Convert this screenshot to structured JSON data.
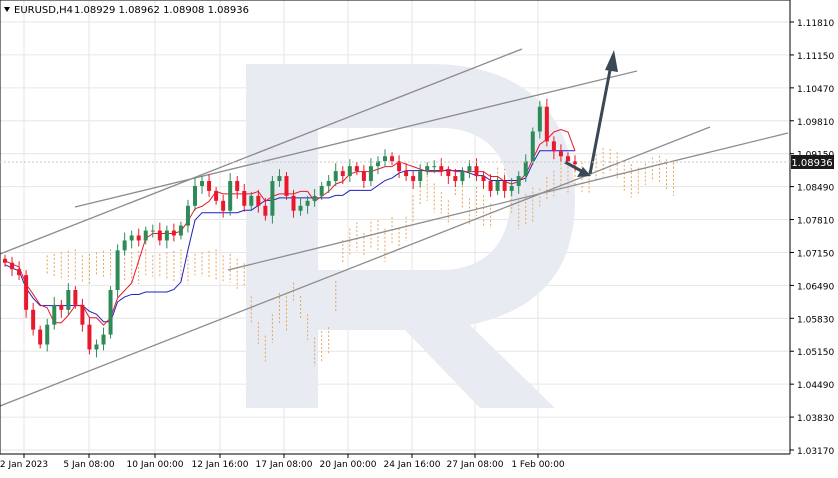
{
  "header": {
    "symbol": "EURUSD,H4",
    "ohlc": "1.08929 1.08962 1.08908 1.08936"
  },
  "price_badge": "1.08936",
  "colors": {
    "bull_candle": "#2e8b57",
    "bear_candle": "#e8192c",
    "kijun_line": "#1f1fbf",
    "tenkan_line": "#e8192c",
    "cloud": "#e8a35a",
    "trend_lines": "#8c8c8c",
    "forecast_arrow": "#3a4856",
    "grid": "#e6e6e6",
    "watermark": "#e8ecf2",
    "price_badge_bg": "#1a1a1a"
  },
  "chart_data": {
    "type": "candlestick",
    "title": "EURUSD,H4",
    "y_ticks": [
      "1.11810",
      "1.11150",
      "1.10470",
      "1.09810",
      "1.09150",
      "1.08490",
      "1.07810",
      "1.07150",
      "1.06490",
      "1.05830",
      "1.05150",
      "1.04490",
      "1.03830",
      "1.03170"
    ],
    "x_ticks": [
      "2 Jan 2023",
      "5 Jan 08:00",
      "10 Jan 00:00",
      "12 Jan 16:00",
      "17 Jan 08:00",
      "20 Jan 00:00",
      "24 Jan 16:00",
      "27 Jan 08:00",
      "1 Feb 00:00"
    ],
    "ylim": [
      1.0317,
      1.1181
    ],
    "grid": true,
    "last_price": 1.08936,
    "candles_close_approx": [
      1.0695,
      1.0682,
      1.067,
      1.06,
      1.056,
      1.053,
      1.057,
      1.061,
      1.06,
      1.064,
      1.061,
      1.057,
      1.052,
      1.053,
      1.055,
      1.064,
      1.072,
      1.074,
      1.075,
      1.074,
      1.076,
      1.076,
      1.074,
      1.076,
      1.075,
      1.077,
      1.081,
      1.085,
      1.086,
      1.084,
      1.082,
      1.08,
      1.086,
      1.084,
      1.081,
      1.083,
      1.081,
      1.079,
      1.086,
      1.087,
      1.083,
      1.08,
      1.081,
      1.082,
      1.083,
      1.085,
      1.086,
      1.088,
      1.087,
      1.089,
      1.088,
      1.086,
      1.089,
      1.09,
      1.091,
      1.09,
      1.088,
      1.087,
      1.086,
      1.088,
      1.089,
      1.089,
      1.088,
      1.087,
      1.086,
      1.088,
      1.089,
      1.087,
      1.086,
      1.084,
      1.086,
      1.084,
      1.085,
      1.087,
      1.09,
      1.096,
      1.101,
      1.094,
      1.092,
      1.091,
      1.09,
      1.0894
    ]
  }
}
